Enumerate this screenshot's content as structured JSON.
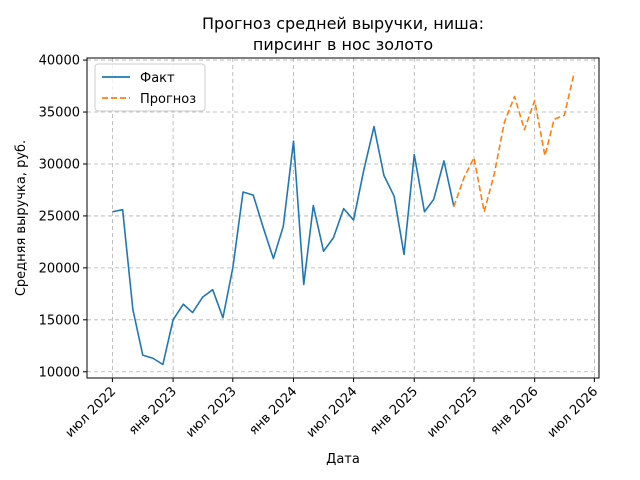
{
  "chart_data": {
    "type": "line",
    "title_line1": "Прогноз средней выручки, ниша:",
    "title_line2": "пирсинг в нос золото",
    "xlabel": "Дата",
    "ylabel": "Средняя выручка, руб.",
    "ylim": [
      9400,
      40200
    ],
    "xlim": [
      "2022-04-15",
      "2026-07-15"
    ],
    "grid": true,
    "legend_position": "top-left",
    "x_ticks": [
      {
        "date": "2022-07-01",
        "label": "июл 2022"
      },
      {
        "date": "2023-01-01",
        "label": "янв 2023"
      },
      {
        "date": "2023-07-01",
        "label": "июл 2023"
      },
      {
        "date": "2024-01-01",
        "label": "янв 2024"
      },
      {
        "date": "2024-07-01",
        "label": "июл 2024"
      },
      {
        "date": "2025-01-01",
        "label": "янв 2025"
      },
      {
        "date": "2025-07-01",
        "label": "июл 2025"
      },
      {
        "date": "2026-01-01",
        "label": "янв 2026"
      },
      {
        "date": "2026-07-01",
        "label": "июл 2026"
      }
    ],
    "y_ticks": [
      {
        "value": 10000,
        "label": "10000"
      },
      {
        "value": 15000,
        "label": "15000"
      },
      {
        "value": 20000,
        "label": "20000"
      },
      {
        "value": 25000,
        "label": "25000"
      },
      {
        "value": 30000,
        "label": "30000"
      },
      {
        "value": 35000,
        "label": "35000"
      },
      {
        "value": 40000,
        "label": "40000"
      }
    ],
    "series": [
      {
        "name": "Факт",
        "color": "#1f77b4",
        "style": "solid",
        "points": [
          {
            "x": "2022-07-01",
            "y": 25400
          },
          {
            "x": "2022-08-01",
            "y": 25600
          },
          {
            "x": "2022-09-01",
            "y": 16000
          },
          {
            "x": "2022-10-01",
            "y": 11600
          },
          {
            "x": "2022-11-01",
            "y": 11300
          },
          {
            "x": "2022-12-01",
            "y": 10700
          },
          {
            "x": "2023-01-01",
            "y": 15000
          },
          {
            "x": "2023-02-01",
            "y": 16500
          },
          {
            "x": "2023-03-01",
            "y": 15700
          },
          {
            "x": "2023-04-01",
            "y": 17200
          },
          {
            "x": "2023-05-01",
            "y": 17900
          },
          {
            "x": "2023-06-01",
            "y": 15200
          },
          {
            "x": "2023-07-01",
            "y": 20000
          },
          {
            "x": "2023-08-01",
            "y": 27300
          },
          {
            "x": "2023-09-01",
            "y": 27000
          },
          {
            "x": "2023-10-01",
            "y": 23900
          },
          {
            "x": "2023-11-01",
            "y": 20900
          },
          {
            "x": "2023-12-01",
            "y": 24000
          },
          {
            "x": "2024-01-01",
            "y": 32200
          },
          {
            "x": "2024-02-01",
            "y": 18400
          },
          {
            "x": "2024-03-01",
            "y": 26000
          },
          {
            "x": "2024-04-01",
            "y": 21600
          },
          {
            "x": "2024-05-01",
            "y": 22900
          },
          {
            "x": "2024-06-01",
            "y": 25700
          },
          {
            "x": "2024-07-01",
            "y": 24600
          },
          {
            "x": "2024-08-01",
            "y": 29400
          },
          {
            "x": "2024-09-01",
            "y": 33600
          },
          {
            "x": "2024-10-01",
            "y": 28900
          },
          {
            "x": "2024-11-01",
            "y": 26900
          },
          {
            "x": "2024-12-01",
            "y": 21300
          },
          {
            "x": "2025-01-01",
            "y": 30900
          },
          {
            "x": "2025-02-01",
            "y": 25400
          },
          {
            "x": "2025-03-01",
            "y": 26600
          },
          {
            "x": "2025-04-01",
            "y": 30300
          },
          {
            "x": "2025-05-01",
            "y": 25900
          }
        ]
      },
      {
        "name": "Прогноз",
        "color": "#ff7f0e",
        "style": "dashed",
        "points": [
          {
            "x": "2025-05-01",
            "y": 25900
          },
          {
            "x": "2025-06-01",
            "y": 28700
          },
          {
            "x": "2025-07-01",
            "y": 30600
          },
          {
            "x": "2025-08-01",
            "y": 25400
          },
          {
            "x": "2025-09-01",
            "y": 29100
          },
          {
            "x": "2025-10-01",
            "y": 34000
          },
          {
            "x": "2025-11-01",
            "y": 36500
          },
          {
            "x": "2025-12-01",
            "y": 33300
          },
          {
            "x": "2026-01-01",
            "y": 36100
          },
          {
            "x": "2026-02-01",
            "y": 30800
          },
          {
            "x": "2026-03-01",
            "y": 34300
          },
          {
            "x": "2026-04-01",
            "y": 34700
          },
          {
            "x": "2026-05-01",
            "y": 38800
          }
        ]
      }
    ]
  }
}
